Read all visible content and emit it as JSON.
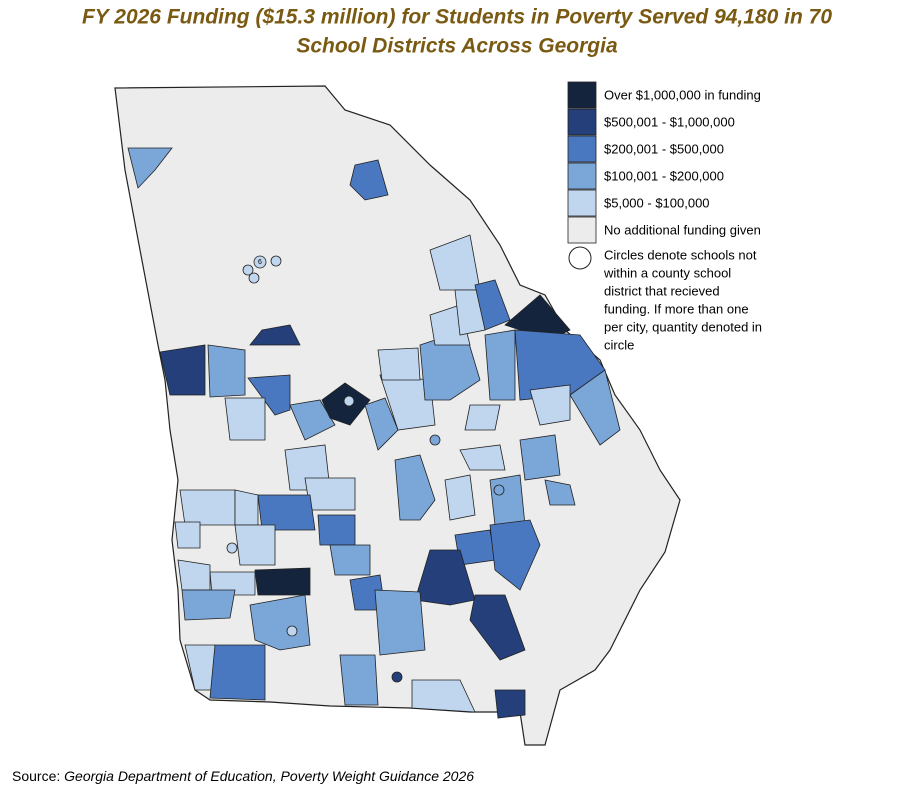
{
  "title": [
    "FY 2026 Funding ($15.3 million) for Students in Poverty Served 94,180 in 70",
    "School Districts Across Georgia"
  ],
  "legend": [
    {
      "label": "Over $1,000,000 in funding",
      "color": "#14243c"
    },
    {
      "label": "$500,001 - $1,000,000",
      "color": "#243f7a"
    },
    {
      "label": "$200,001 - $500,000",
      "color": "#4a78c0"
    },
    {
      "label": "$100,001 - $200,000",
      "color": "#7aa6d8"
    },
    {
      "label": "$5,000 - $100,000",
      "color": "#c0d6ee"
    },
    {
      "label": "No additional funding given",
      "color": "#ececec"
    }
  ],
  "circle_note": [
    "Circles denote schools not",
    "within a county school",
    "district that recieved",
    "funding. If more than one",
    "per city, quantity denoted in",
    "circle"
  ],
  "circle_count": "6",
  "source": {
    "prefix": "Source:",
    "text": "Georgia Department of Education, Poverty Weight Guidance 2026"
  }
}
